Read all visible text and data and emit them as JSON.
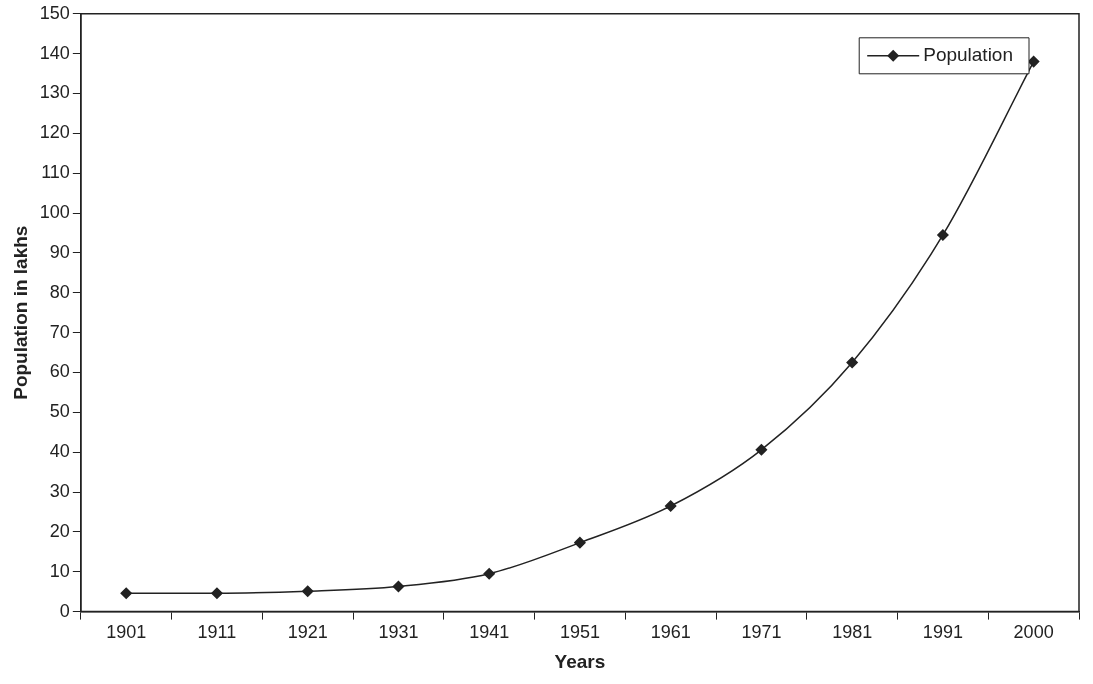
{
  "chart_data": {
    "type": "line",
    "xlabel": "Years",
    "ylabel": "Population in lakhs",
    "categories": [
      "1901",
      "1911",
      "1921",
      "1931",
      "1941",
      "1951",
      "1961",
      "1971",
      "1981",
      "1991",
      "2000"
    ],
    "series": [
      {
        "name": "Population",
        "color": "#222222",
        "values": [
          4.6,
          4.6,
          5.1,
          6.3,
          9.5,
          17.3,
          26.5,
          40.6,
          62.5,
          94.5,
          138
        ]
      }
    ],
    "ylim": [
      0,
      150
    ],
    "yticks": [
      0,
      10,
      20,
      30,
      40,
      50,
      60,
      70,
      80,
      90,
      100,
      110,
      120,
      130,
      140,
      150
    ],
    "grid": false,
    "legend": "top right",
    "marker": "diamond",
    "line_style": "solid"
  }
}
